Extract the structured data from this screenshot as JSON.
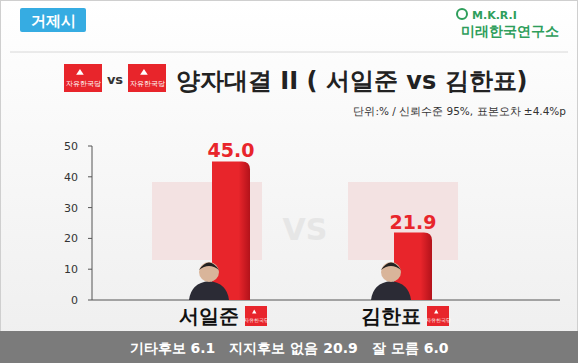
{
  "chart_data": {
    "type": "bar",
    "region": "거제시",
    "source_en": "M.K.R.I",
    "source": "미래한국연구소",
    "party": "자유한국당",
    "title_vs": "vs",
    "title": "양자대결 II ( 서일준 vs 김한표)",
    "subtitle": "단위:% / 신뢰수준 95%, 표본오차 ±4.4%p",
    "watermark": "VS",
    "categories": [
      "서일준",
      "김한표"
    ],
    "values": [
      45.0,
      21.9
    ],
    "value_labels": [
      "45.0",
      "21.9"
    ],
    "color": "#e8252b",
    "ylim": [
      0,
      50
    ],
    "yticks": [
      0,
      10,
      20,
      30,
      40,
      50
    ],
    "grid": false,
    "data_labels": true,
    "footer": [
      {
        "label": "기타후보",
        "value": 6.1,
        "value_label": "6.1"
      },
      {
        "label": "지지후보 없음",
        "value": 20.9,
        "value_label": "20.9"
      },
      {
        "label": "잘 모름",
        "value": 6.0,
        "value_label": "6.0"
      }
    ]
  }
}
